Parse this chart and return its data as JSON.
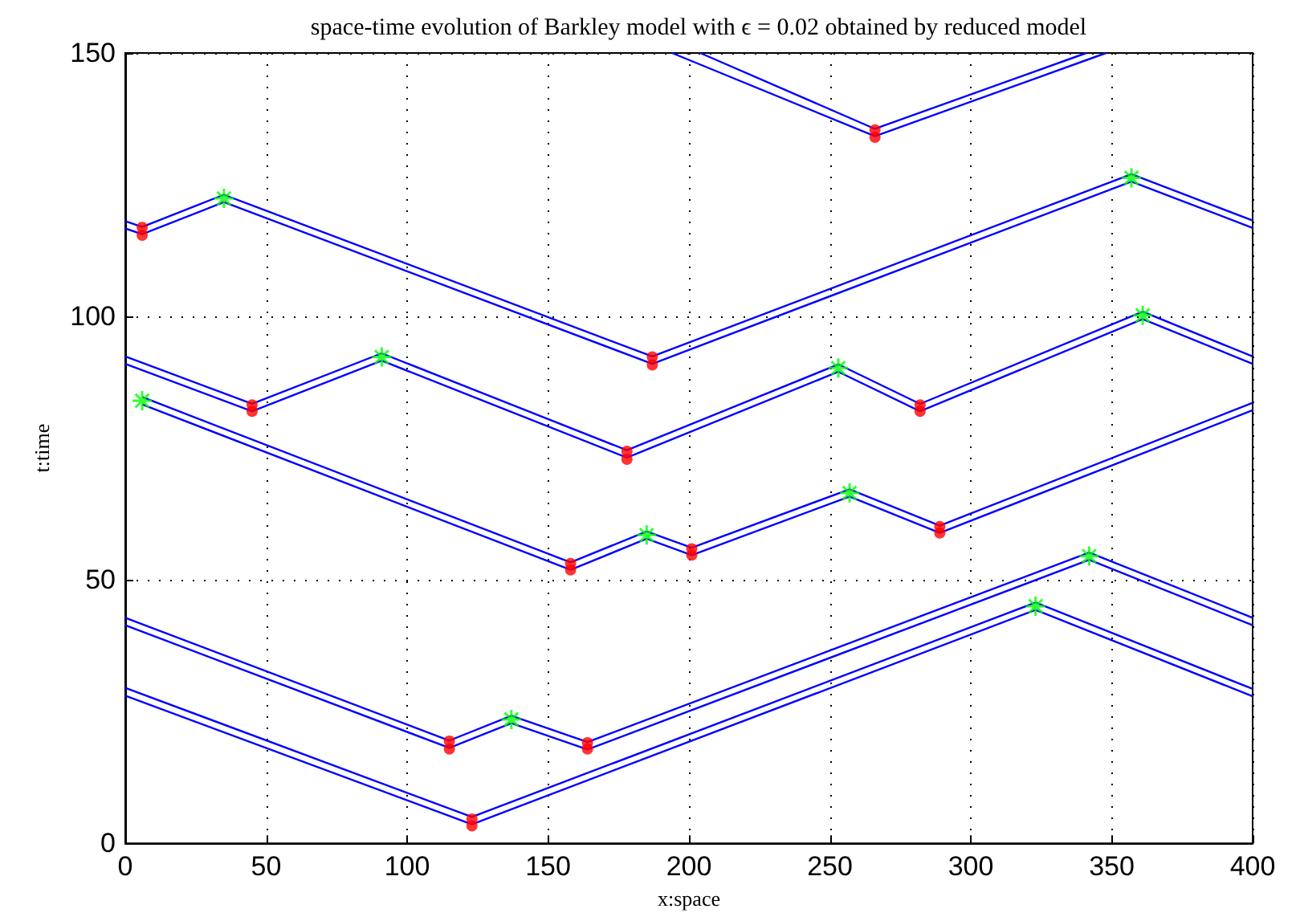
{
  "chart_data": {
    "type": "line",
    "title": "space-time evolution of Barkley model with ϵ = 0.02 obtained by reduced model",
    "xlabel": "x:space",
    "ylabel": "t:time",
    "xlim": [
      0,
      400
    ],
    "xticks": [
      0,
      50,
      100,
      150,
      200,
      250,
      300,
      350,
      400
    ],
    "ylim": [
      0,
      150
    ],
    "yticks": [
      0,
      50,
      100,
      150
    ],
    "grid": true,
    "marker": "none",
    "line_style": "solid",
    "series": [
      {
        "color": "#0000ff",
        "x": [
          0,
          123,
          323,
          400
        ],
        "values": [
          29.5,
          5,
          45.7,
          29.3
        ]
      },
      {
        "color": "#0000ff",
        "x": [
          0,
          123,
          323,
          400
        ],
        "values": [
          28,
          3.6,
          44.3,
          27.9
        ]
      },
      {
        "color": "#0000ff",
        "x": [
          0,
          115,
          137,
          164,
          342,
          400
        ],
        "values": [
          42.8,
          19.5,
          24.2,
          19.2,
          55.2,
          42.8
        ]
      },
      {
        "color": "#0000ff",
        "x": [
          0,
          115,
          137,
          164,
          342,
          400
        ],
        "values": [
          41.4,
          18.1,
          22.8,
          17.8,
          53.8,
          41.4
        ]
      },
      {
        "color": "#0000ff",
        "x": [
          6,
          158,
          185,
          201,
          257,
          289,
          400
        ],
        "values": [
          84.7,
          53.3,
          59.2,
          56.1,
          67.2,
          60.3,
          83.6
        ]
      },
      {
        "color": "#0000ff",
        "x": [
          6,
          158,
          185,
          201,
          257,
          289,
          400
        ],
        "values": [
          83.3,
          51.9,
          57.8,
          54.7,
          65.8,
          58.9,
          82.2
        ]
      },
      {
        "color": "#0000ff",
        "x": [
          0,
          45,
          91,
          178,
          253,
          282,
          361,
          400
        ],
        "values": [
          92.4,
          83.4,
          93,
          74.6,
          90.9,
          83.4,
          100.9,
          92.4
        ]
      },
      {
        "color": "#0000ff",
        "x": [
          0,
          45,
          91,
          178,
          253,
          282,
          361,
          400
        ],
        "values": [
          91,
          82,
          91.6,
          73.2,
          89.5,
          82,
          99.5,
          91
        ]
      },
      {
        "color": "#0000ff",
        "x": [
          0,
          6,
          35,
          187,
          357,
          400
        ],
        "values": [
          118.1,
          117,
          123.1,
          92.4,
          127,
          118.2
        ]
      },
      {
        "color": "#0000ff",
        "x": [
          0,
          6,
          35,
          187,
          357,
          400
        ],
        "values": [
          116.7,
          115.6,
          121.7,
          91,
          125.6,
          116.8
        ]
      },
      {
        "color": "#0000ff",
        "x": [
          204,
          266,
          341
        ],
        "values": [
          150,
          135.6,
          150
        ]
      },
      {
        "color": "#0000ff",
        "x": [
          194,
          266,
          348
        ],
        "values": [
          150,
          134.2,
          150
        ]
      },
      {
        "type": "scatter",
        "color": "#ff0000",
        "marker": "circle",
        "x": [
          123,
          123,
          115,
          115,
          164,
          164,
          158,
          158,
          201,
          201,
          289,
          289,
          45,
          45,
          178,
          178,
          282,
          282,
          6,
          6,
          187,
          187,
          266,
          266
        ],
        "values": [
          4.6,
          3.3,
          19.4,
          17.9,
          19.1,
          17.9,
          53.1,
          51.9,
          55.9,
          54.7,
          60.1,
          58.9,
          83.2,
          82,
          74.4,
          72.9,
          83.2,
          82,
          116.9,
          115.4,
          92.3,
          90.8,
          135.4,
          134
        ]
      },
      {
        "type": "scatter",
        "color": "#00ff00",
        "marker": "cross",
        "x": [
          323,
          137,
          342,
          6,
          185,
          257,
          91,
          253,
          361,
          35,
          357
        ],
        "values": [
          45,
          23.5,
          54.5,
          84,
          58.5,
          66.5,
          92.3,
          90.2,
          100.2,
          122.4,
          126.3
        ]
      }
    ]
  }
}
